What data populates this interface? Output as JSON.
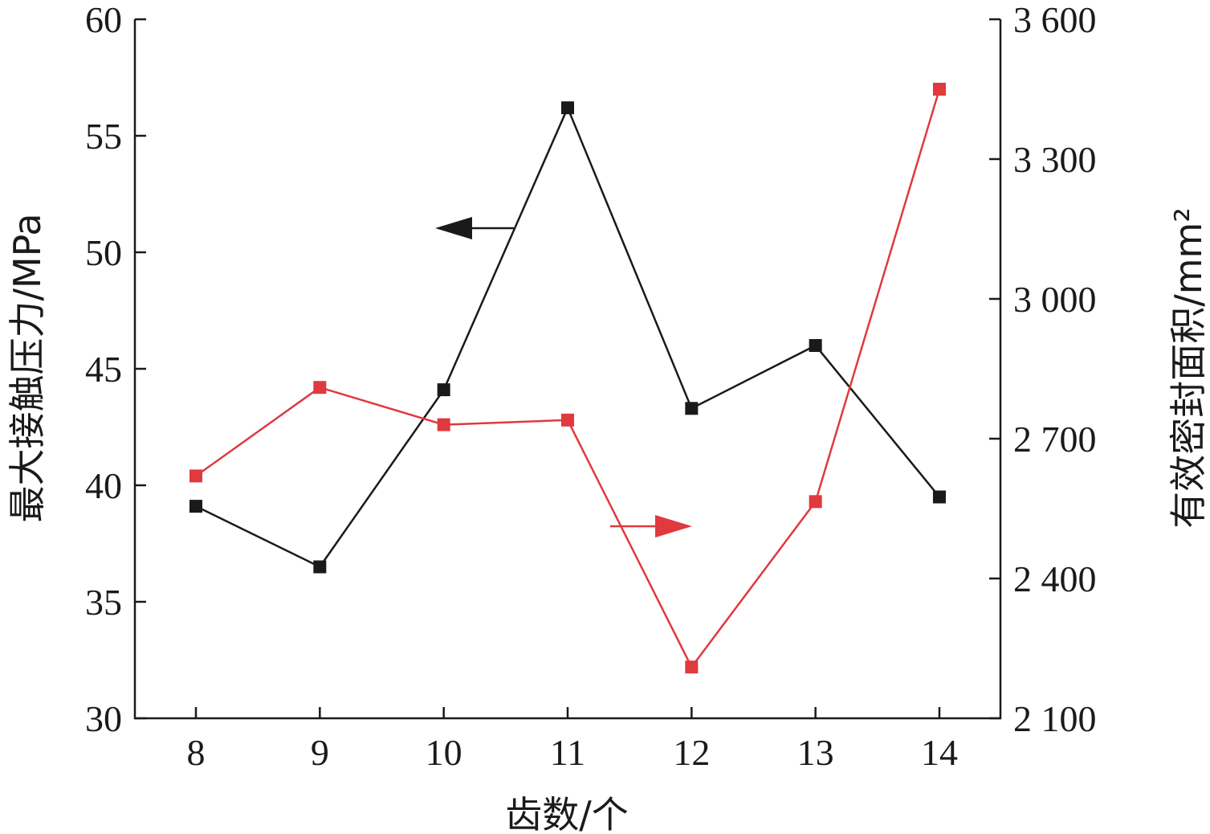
{
  "chart_data": {
    "type": "line",
    "categories": [
      "8",
      "9",
      "10",
      "11",
      "12",
      "13",
      "14"
    ],
    "xlabel": "齿数/个",
    "ylabel_left": "最大接触压力/MPa",
    "ylabel_right": "有效密封面积/mm²",
    "ylim_left": [
      30,
      60
    ],
    "ylim_right": [
      2100,
      3600
    ],
    "yticks_left": [
      "30",
      "35",
      "40",
      "45",
      "50",
      "55",
      "60"
    ],
    "yticks_right": [
      "2 100",
      "2 400",
      "2 700",
      "3 000",
      "3 300",
      "3 600"
    ],
    "grid": false,
    "series": [
      {
        "axis": "left",
        "color": "#1a1a1a",
        "marker": "square",
        "values": [
          39.1,
          36.5,
          44.1,
          56.2,
          43.3,
          46.0,
          39.5
        ]
      },
      {
        "axis": "right",
        "color": "#e0393e",
        "marker": "square",
        "values": [
          2620,
          2810,
          2730,
          2740,
          2210,
          2565,
          3450
        ]
      }
    ],
    "annotations": [
      {
        "type": "arrow",
        "direction": "left",
        "points_to": "left-axis",
        "color": "#1a1a1a"
      },
      {
        "type": "arrow",
        "direction": "right",
        "points_to": "right-axis",
        "color": "#e0393e"
      }
    ]
  }
}
